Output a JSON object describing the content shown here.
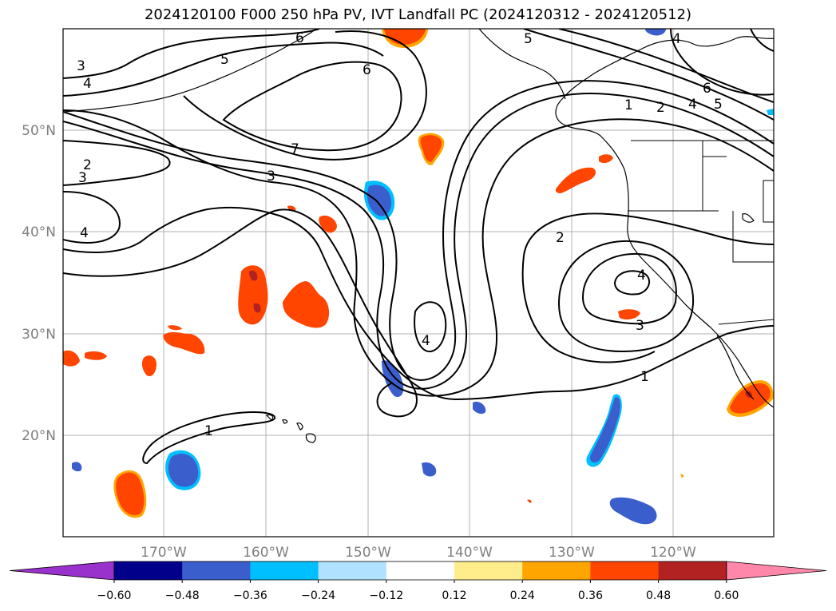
{
  "title": "2024120100 F000 250 hPa PV, IVT Landfall PC (2024120312 - 2024120512)",
  "map": {
    "lon_ticks": [
      "170°W",
      "160°W",
      "150°W",
      "140°W",
      "130°W",
      "120°W"
    ],
    "lat_ticks": [
      "50°N",
      "40°N",
      "30°N",
      "20°N"
    ],
    "contour_labels": [
      "1",
      "2",
      "3",
      "4",
      "5",
      "6",
      "7"
    ]
  },
  "colorbar": {
    "ticks": [
      "−0.60",
      "−0.48",
      "−0.36",
      "−0.24",
      "−0.12",
      "0.12",
      "0.24",
      "0.36",
      "0.48",
      "0.60"
    ],
    "colors": [
      "#9932cc",
      "#00008b",
      "#3a5fcd",
      "#00bfff",
      "#b0e2ff",
      "#ffffff",
      "#ffec8b",
      "#ffa500",
      "#ff4500",
      "#b22222",
      "#ff88aa"
    ]
  }
}
